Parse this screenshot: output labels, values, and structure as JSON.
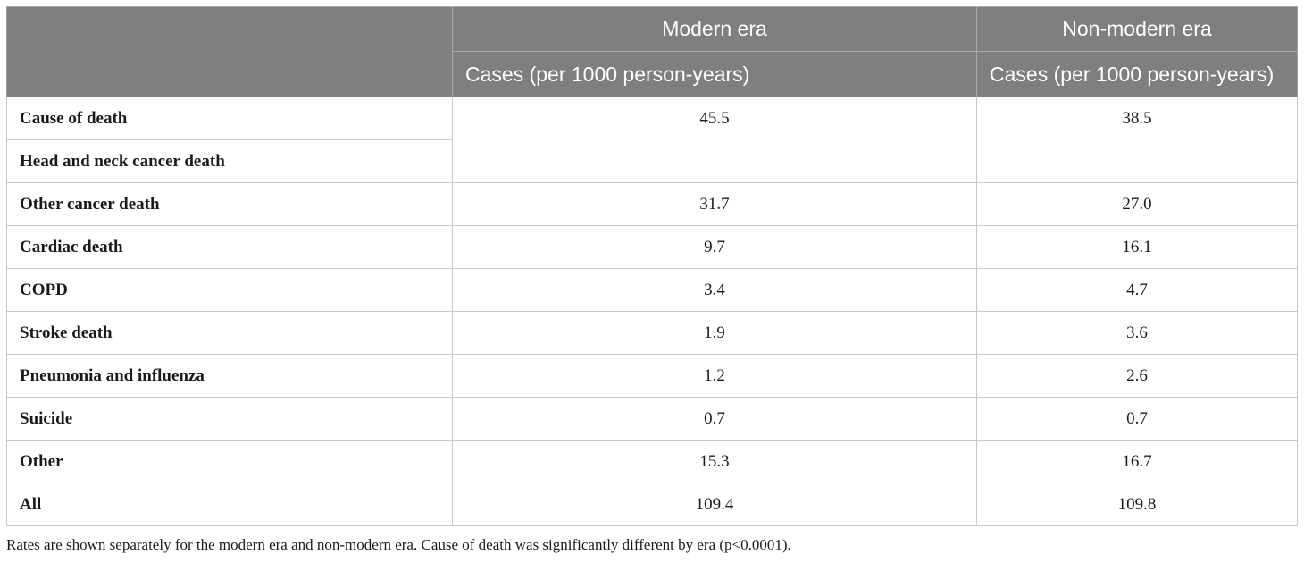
{
  "table": {
    "header": {
      "col1_era": "Modern era",
      "col2_era": "Non-modern era",
      "col1_units": "Cases (per 1000 person-years)",
      "col2_units": "Cases (per 1000 person-years)"
    },
    "rows": [
      {
        "label": "Cause of death",
        "modern": "45.5",
        "nonmodern": "38.5"
      },
      {
        "label": "Head and neck cancer death"
      },
      {
        "label": "Other cancer death",
        "modern": "31.7",
        "nonmodern": "27.0"
      },
      {
        "label": "Cardiac death",
        "modern": "9.7",
        "nonmodern": "16.1"
      },
      {
        "label": "COPD",
        "modern": "3.4",
        "nonmodern": "4.7"
      },
      {
        "label": "Stroke death",
        "modern": "1.9",
        "nonmodern": "3.6"
      },
      {
        "label": "Pneumonia and influenza",
        "modern": "1.2",
        "nonmodern": "2.6"
      },
      {
        "label": "Suicide",
        "modern": "0.7",
        "nonmodern": "0.7"
      },
      {
        "label": "Other",
        "modern": "15.3",
        "nonmodern": "16.7"
      },
      {
        "label": "All",
        "modern": "109.4",
        "nonmodern": "109.8"
      }
    ]
  },
  "caption": "Rates are shown separately for the modern era and non-modern era. Cause of death was significantly different by era (p<0.0001)."
}
